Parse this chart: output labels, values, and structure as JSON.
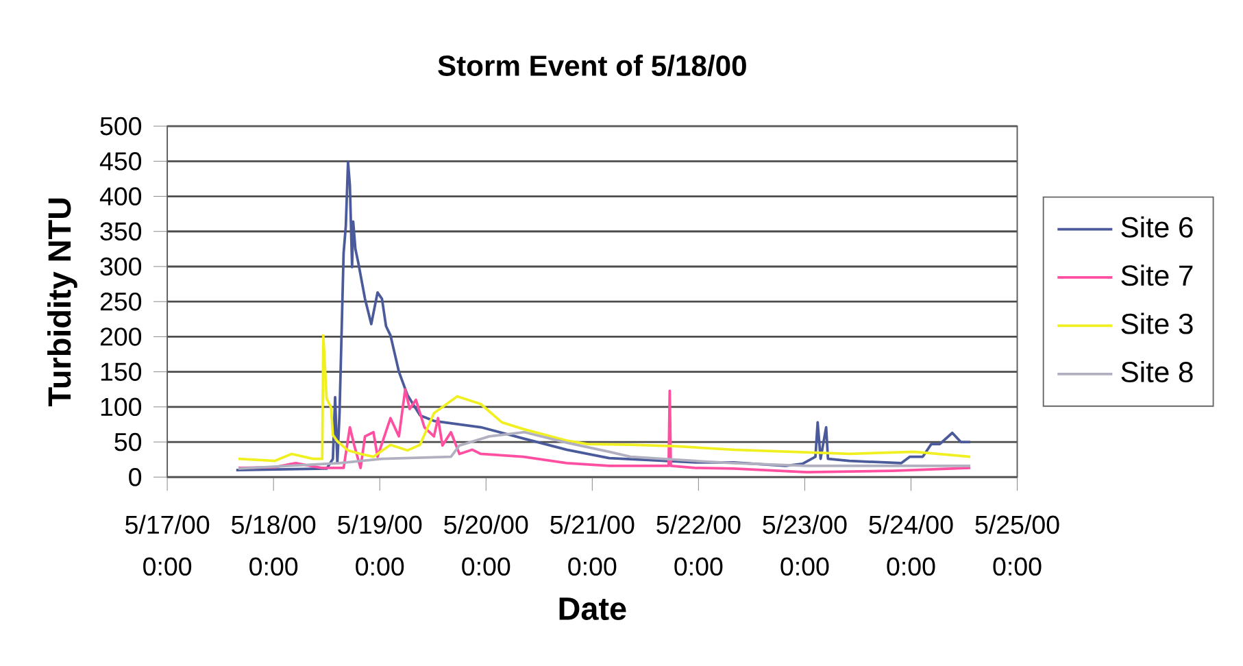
{
  "chart_data": {
    "type": "line",
    "title": "Storm Event of 5/18/00",
    "xlabel": "Date",
    "ylabel": "Turbidity NTU",
    "xlim": [
      "2000-05-17",
      "2000-05-25"
    ],
    "xticks": [
      {
        "value": "2000-05-17",
        "label": "5/17/00 0:00"
      },
      {
        "value": "2000-05-18",
        "label": "5/18/00 0:00"
      },
      {
        "value": "2000-05-19",
        "label": "5/19/00 0:00"
      },
      {
        "value": "2000-05-20",
        "label": "5/20/00 0:00"
      },
      {
        "value": "2000-05-21",
        "label": "5/21/00 0:00"
      },
      {
        "value": "2000-05-22",
        "label": "5/22/00 0:00"
      },
      {
        "value": "2000-05-23",
        "label": "5/23/00 0:00"
      },
      {
        "value": "2000-05-24",
        "label": "5/24/00 0:00"
      },
      {
        "value": "2000-05-25",
        "label": "5/25/00 0:00"
      }
    ],
    "ylim": [
      0,
      500
    ],
    "yticks": [
      0,
      50,
      100,
      150,
      200,
      250,
      300,
      350,
      400,
      450,
      500
    ],
    "grid": "y",
    "legend": "right",
    "marker": "none",
    "line_style": "solid",
    "series": [
      {
        "name": "Site 6",
        "color": "#4a5a9a",
        "x": [
          "2000-05-17T15:35",
          "2000-05-18T12:00",
          "2000-05-18T13:25",
          "2000-05-18T13:55",
          "2000-05-18T14:25",
          "2000-05-18T14:55",
          "2000-05-18T15:50",
          "2000-05-18T16:20",
          "2000-05-18T16:50",
          "2000-05-18T17:15",
          "2000-05-18T17:45",
          "2000-05-18T18:00",
          "2000-05-18T18:30",
          "2000-05-18T19:10",
          "2000-05-18T20:40",
          "2000-05-18T22:05",
          "2000-05-18T23:30",
          "2000-05-19T00:30",
          "2000-05-19T01:25",
          "2000-05-19T02:25",
          "2000-05-19T04:20",
          "2000-05-19T06:15",
          "2000-05-19T09:05",
          "2000-05-19T12:15",
          "2000-05-19T22:50",
          "2000-05-20T08:25",
          "2000-05-20T18:15",
          "2000-05-21T03:50",
          "2000-05-21T13:25",
          "2000-05-21T23:15",
          "2000-05-22T07:55",
          "2000-05-22T19:40",
          "2000-05-22T23:30",
          "2000-05-23T02:25",
          "2000-05-23T02:55",
          "2000-05-23T03:35",
          "2000-05-23T04:50",
          "2000-05-23T05:15",
          "2000-05-23T10:05",
          "2000-05-23T21:50",
          "2000-05-23T23:45",
          "2000-05-24T02:40",
          "2000-05-24T04:35",
          "2000-05-24T06:30",
          "2000-05-24T09:20",
          "2000-05-24T11:15",
          "2000-05-24T13:25"
        ],
        "values": [
          10,
          12,
          26,
          114,
          20,
          91,
          319,
          358,
          449,
          416,
          299,
          364,
          325,
          305,
          254,
          218,
          263,
          254,
          215,
          202,
          150,
          117,
          88,
          80,
          71,
          55,
          39,
          27,
          24,
          21,
          21,
          16,
          19,
          29,
          78,
          26,
          71,
          26,
          23,
          20,
          29,
          29,
          47,
          47,
          63,
          50,
          50
        ]
      },
      {
        "name": "Site 7",
        "color": "#ff4fa0",
        "x": [
          "2000-05-17T16:05",
          "2000-05-18T00:15",
          "2000-05-18T05:00",
          "2000-05-18T10:50",
          "2000-05-18T15:50",
          "2000-05-18T17:15",
          "2000-05-18T18:15",
          "2000-05-18T19:40",
          "2000-05-18T20:40",
          "2000-05-18T22:35",
          "2000-05-18T23:30",
          "2000-05-19T02:25",
          "2000-05-19T04:20",
          "2000-05-19T05:45",
          "2000-05-19T06:45",
          "2000-05-19T08:10",
          "2000-05-19T10:05",
          "2000-05-19T12:15",
          "2000-05-19T13:10",
          "2000-05-19T14:10",
          "2000-05-19T16:05",
          "2000-05-19T18:00",
          "2000-05-19T20:55",
          "2000-05-19T22:50",
          "2000-05-20T08:25",
          "2000-05-20T18:15",
          "2000-05-21T03:50",
          "2000-05-21T17:15",
          "2000-05-21T17:30",
          "2000-05-21T17:45",
          "2000-05-21T23:15",
          "2000-05-22T07:55",
          "2000-05-23T00:30",
          "2000-05-23T19:55",
          "2000-05-24T13:25"
        ],
        "values": [
          13,
          14,
          20,
          13,
          13,
          71,
          45,
          13,
          58,
          64,
          29,
          84,
          58,
          125,
          97,
          110,
          71,
          58,
          84,
          45,
          64,
          33,
          39,
          33,
          29,
          20,
          16,
          16,
          123,
          16,
          13,
          12,
          7,
          9,
          13
        ]
      },
      {
        "name": "Site 3",
        "color": "#f0f020",
        "x": [
          "2000-05-17T16:05",
          "2000-05-18T00:15",
          "2000-05-18T04:05",
          "2000-05-18T08:55",
          "2000-05-18T11:00",
          "2000-05-18T11:15",
          "2000-05-18T12:00",
          "2000-05-18T13:00",
          "2000-05-18T13:25",
          "2000-05-18T14:25",
          "2000-05-18T16:50",
          "2000-05-18T19:40",
          "2000-05-18T22:35",
          "2000-05-19T02:25",
          "2000-05-19T06:15",
          "2000-05-19T09:05",
          "2000-05-19T12:15",
          "2000-05-19T17:30",
          "2000-05-19T22:50",
          "2000-05-20T03:35",
          "2000-05-20T08:40",
          "2000-05-20T18:15",
          "2000-05-20T23:00",
          "2000-05-21T08:40",
          "2000-05-21T18:30",
          "2000-05-22T07:55",
          "2000-05-23T10:05",
          "2000-05-24T00:45",
          "2000-05-24T13:25"
        ],
        "values": [
          26,
          23,
          33,
          26,
          26,
          202,
          112,
          99,
          60,
          51,
          38,
          33,
          29,
          46,
          38,
          46,
          91,
          115,
          104,
          78,
          68,
          52,
          47,
          46,
          44,
          39,
          33,
          36,
          29
        ]
      },
      {
        "name": "Site 8",
        "color": "#b0b0c0",
        "x": [
          "2000-05-17T16:05",
          "2000-05-18T14:55",
          "2000-05-19T00:30",
          "2000-05-19T16:05",
          "2000-05-19T18:00",
          "2000-05-20T00:45",
          "2000-05-20T08:40",
          "2000-05-20T18:15",
          "2000-05-21T03:50",
          "2000-05-21T08:40",
          "2000-05-21T23:15",
          "2000-05-22T07:55",
          "2000-05-23T00:30",
          "2000-05-24T13:25"
        ],
        "values": [
          12,
          20,
          26,
          29,
          45,
          58,
          64,
          49,
          36,
          29,
          23,
          20,
          16,
          16
        ]
      }
    ]
  }
}
